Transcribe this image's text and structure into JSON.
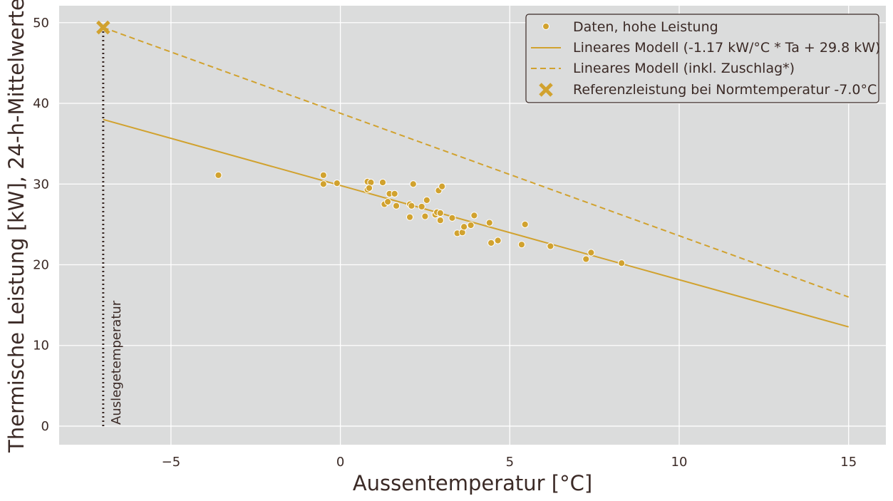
{
  "chart_data": {
    "type": "scatter",
    "xlabel": "Aussentemperatur [°C]",
    "ylabel": "Thermische Leistung [kW], 24-h-Mittelwerte",
    "xlim": [
      -8.3,
      16.1
    ],
    "ylim": [
      -2.3,
      52.1
    ],
    "xticks": [
      -5,
      0,
      5,
      10,
      15
    ],
    "xtick_labels": [
      "−5",
      "0",
      "5",
      "10",
      "15"
    ],
    "yticks": [
      0,
      10,
      20,
      30,
      40,
      50
    ],
    "ytick_labels": [
      "0",
      "10",
      "20",
      "30",
      "40",
      "50"
    ],
    "grid": true,
    "legend_position": "top-right",
    "colors": {
      "series": "#d1a22f",
      "marker_edge": "#ffffff",
      "background": "#dbdcdc",
      "grid": "#ffffff",
      "text": "#3b2a26",
      "reference_line": "#3b2a26"
    },
    "series": [
      {
        "name": "Daten, hohe Leistung",
        "kind": "scatter",
        "points": [
          [
            -3.6,
            31.1
          ],
          [
            -0.5,
            31.1
          ],
          [
            -0.5,
            30.0
          ],
          [
            -0.1,
            30.1
          ],
          [
            0.8,
            30.3
          ],
          [
            0.9,
            30.2
          ],
          [
            0.8,
            29.3
          ],
          [
            0.85,
            29.5
          ],
          [
            1.25,
            30.2
          ],
          [
            1.3,
            27.5
          ],
          [
            1.4,
            27.8
          ],
          [
            1.45,
            28.8
          ],
          [
            1.6,
            28.8
          ],
          [
            1.65,
            27.3
          ],
          [
            2.05,
            27.5
          ],
          [
            2.05,
            25.9
          ],
          [
            2.1,
            27.3
          ],
          [
            2.15,
            30.0
          ],
          [
            2.4,
            27.2
          ],
          [
            2.5,
            26.0
          ],
          [
            2.55,
            28.0
          ],
          [
            2.8,
            26.2
          ],
          [
            2.85,
            26.5
          ],
          [
            2.9,
            29.2
          ],
          [
            2.95,
            26.4
          ],
          [
            2.95,
            25.5
          ],
          [
            3.0,
            29.7
          ],
          [
            3.3,
            25.8
          ],
          [
            3.45,
            23.9
          ],
          [
            3.6,
            24.0
          ],
          [
            3.65,
            24.7
          ],
          [
            3.85,
            24.9
          ],
          [
            3.95,
            26.1
          ],
          [
            4.4,
            25.2
          ],
          [
            4.45,
            22.7
          ],
          [
            4.65,
            23.0
          ],
          [
            5.35,
            22.5
          ],
          [
            5.45,
            25.0
          ],
          [
            6.2,
            22.3
          ],
          [
            7.25,
            20.7
          ],
          [
            7.4,
            21.5
          ],
          [
            8.3,
            20.2
          ]
        ]
      },
      {
        "name": "Lineares Modell (-1.17 kW/°C * Ta + 29.8 kW)",
        "kind": "line",
        "style": "solid",
        "points": [
          [
            -7.0,
            38.0
          ],
          [
            15.0,
            12.3
          ]
        ]
      },
      {
        "name": "Lineares Modell (inkl. Zuschlag*)",
        "kind": "line",
        "style": "dashed",
        "points": [
          [
            -7.0,
            49.4
          ],
          [
            15.0,
            16.0
          ]
        ]
      },
      {
        "name": "Referenzleistung bei Normtemperatur -7.0°C",
        "kind": "marker",
        "marker": "x",
        "points": [
          [
            -7.0,
            49.4
          ]
        ]
      }
    ],
    "reference_line": {
      "x": -7.0,
      "y_from": 0,
      "y_to": 49.4,
      "style": "dotted"
    },
    "annotation": {
      "text": "Auslegetemperatur",
      "x": -7.0,
      "y": 0
    }
  }
}
